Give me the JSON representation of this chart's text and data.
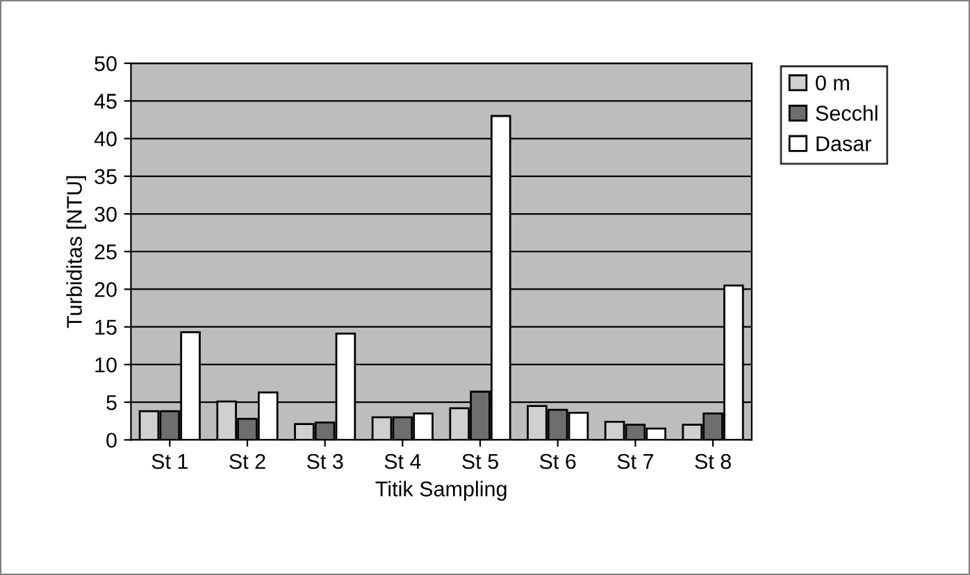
{
  "chart_data": {
    "type": "bar",
    "xlabel": "Titik Sampling",
    "ylabel": "Turbiditas [NTU]",
    "categories": [
      "St 1",
      "St 2",
      "St 3",
      "St 4",
      "St 5",
      "St 6",
      "St 7",
      "St 8"
    ],
    "series": [
      {
        "name": "0 m",
        "color": "#d0d0d0",
        "values": [
          3.8,
          5.1,
          2.1,
          3.0,
          4.2,
          4.5,
          2.4,
          2.0
        ]
      },
      {
        "name": "Secchl",
        "color": "#6e6e6e",
        "values": [
          3.8,
          2.8,
          2.3,
          3.0,
          6.4,
          4.0,
          2.0,
          3.5
        ]
      },
      {
        "name": "Dasar",
        "color": "#ffffff",
        "values": [
          14.3,
          6.3,
          14.1,
          3.5,
          43,
          3.6,
          1.5,
          20.5
        ]
      }
    ],
    "ylim": [
      0,
      50
    ],
    "yticks": [
      0,
      5,
      10,
      15,
      20,
      25,
      30,
      35,
      40,
      45,
      50
    ],
    "grid": "y",
    "legend": "right"
  }
}
